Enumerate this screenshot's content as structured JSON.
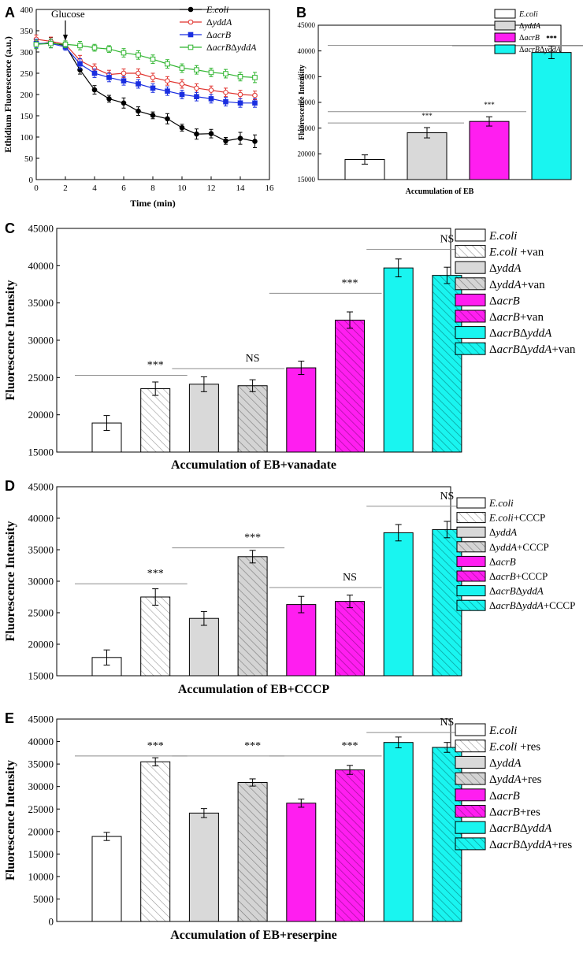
{
  "colors": {
    "ecoli": "#ffffff",
    "yddA": "#d9d9d9",
    "acrB": "#ff1ef0",
    "double": "#19f5f0",
    "line_ecoli": "#000000",
    "line_yddA": "#e0312c",
    "line_acrB": "#1a2ee0",
    "line_double": "#2fb52f",
    "sig_line": "#8c8c8c"
  },
  "chart_data": [
    {
      "id": "A",
      "panel_label": "A",
      "type": "line",
      "xlabel": "Time (min)",
      "ylabel": "Ethidium Fluorescence (a.u.)",
      "xlim": [
        0,
        16
      ],
      "ylim": [
        0,
        400
      ],
      "xticks": [
        0,
        2,
        4,
        6,
        8,
        10,
        12,
        14,
        16
      ],
      "yticks": [
        0,
        50,
        100,
        150,
        200,
        250,
        300,
        350,
        400
      ],
      "annotation": "Glucose",
      "annotation_x": 2,
      "x": [
        0,
        1,
        2,
        3,
        4,
        5,
        6,
        7,
        8,
        9,
        10,
        11,
        12,
        13,
        14,
        15
      ],
      "series": [
        {
          "name": "E.coli",
          "color_key": "line_ecoli",
          "marker": "filled-circle",
          "values": [
            318,
            322,
            315,
            258,
            211,
            190,
            180,
            161,
            151,
            143,
            122,
            107,
            108,
            91,
            97,
            90
          ],
          "errors": [
            10,
            12,
            8,
            10,
            10,
            8,
            12,
            10,
            8,
            12,
            8,
            12,
            10,
            8,
            14,
            15
          ]
        },
        {
          "name": "ΔyddA",
          "color_key": "line_yddA",
          "marker": "open-circle",
          "values": [
            330,
            325,
            318,
            280,
            262,
            247,
            250,
            250,
            240,
            232,
            225,
            215,
            210,
            205,
            200,
            198
          ],
          "errors": [
            10,
            10,
            8,
            12,
            10,
            10,
            10,
            10,
            10,
            10,
            10,
            10,
            10,
            10,
            10,
            10
          ]
        },
        {
          "name": "ΔacrB",
          "color_key": "line_acrB",
          "marker": "filled-square",
          "values": [
            320,
            320,
            312,
            272,
            250,
            240,
            232,
            225,
            215,
            208,
            200,
            195,
            190,
            183,
            180,
            180
          ],
          "errors": [
            10,
            10,
            8,
            12,
            10,
            10,
            10,
            10,
            10,
            10,
            10,
            10,
            10,
            10,
            10,
            10
          ]
        },
        {
          "name": "ΔacrBΔyddA",
          "color_key": "line_double",
          "marker": "open-square",
          "values": [
            318,
            320,
            318,
            315,
            310,
            307,
            298,
            293,
            283,
            272,
            262,
            258,
            252,
            249,
            242,
            240
          ],
          "errors": [
            10,
            10,
            8,
            10,
            8,
            8,
            10,
            10,
            10,
            10,
            10,
            10,
            10,
            10,
            10,
            12
          ]
        }
      ]
    },
    {
      "id": "B",
      "panel_label": "B",
      "type": "bar",
      "xlabel": "Accumulation of EB",
      "ylabel": "Fluorescence Intensity",
      "ylim": [
        15000,
        45000
      ],
      "yticks": [
        15000,
        20000,
        25000,
        30000,
        35000,
        40000,
        45000
      ],
      "bars": [
        {
          "label": "E.coli",
          "value": 18900,
          "error": 900,
          "color_key": "ecoli",
          "hatch": false
        },
        {
          "label": "ΔyddA",
          "value": 24100,
          "error": 1000,
          "color_key": "yddA",
          "hatch": false
        },
        {
          "label": "ΔacrB",
          "value": 26300,
          "error": 900,
          "color_key": "acrB",
          "hatch": false
        },
        {
          "label": "ΔacrBΔyddA",
          "value": 39700,
          "error": 1200,
          "color_key": "double",
          "hatch": false
        }
      ],
      "significance": [
        {
          "text": "***",
          "from": 0,
          "to": 1,
          "level": 26000
        },
        {
          "text": "***",
          "from": 0,
          "to": 2,
          "level": 28200
        },
        {
          "text": "***",
          "from": 2,
          "to": 3,
          "level": 41000
        },
        {
          "text": "***",
          "from": 0,
          "to": 3,
          "level": 41100
        }
      ],
      "legend": [
        "E.coli",
        "ΔyddA",
        "ΔacrB",
        "ΔacrBΔyddA"
      ]
    },
    {
      "id": "C",
      "panel_label": "C",
      "type": "bar",
      "xlabel": "Accumulation of EB+vanadate",
      "ylabel": "Fluorescence Intensity",
      "ylim": [
        15000,
        45000
      ],
      "yticks": [
        15000,
        20000,
        25000,
        30000,
        35000,
        40000,
        45000
      ],
      "bars": [
        {
          "label": "E.coli",
          "value": 18900,
          "error": 1000,
          "color_key": "ecoli",
          "hatch": false
        },
        {
          "label": "E.coli +van",
          "value": 23500,
          "error": 900,
          "color_key": "ecoli",
          "hatch": true
        },
        {
          "label": "ΔyddA",
          "value": 24100,
          "error": 1000,
          "color_key": "yddA",
          "hatch": false
        },
        {
          "label": "ΔyddA+van",
          "value": 23900,
          "error": 800,
          "color_key": "yddA",
          "hatch": true
        },
        {
          "label": "ΔacrB",
          "value": 26300,
          "error": 900,
          "color_key": "acrB",
          "hatch": false
        },
        {
          "label": "ΔacrB+van",
          "value": 32700,
          "error": 1100,
          "color_key": "acrB",
          "hatch": true
        },
        {
          "label": "ΔacrBΔyddA",
          "value": 39700,
          "error": 1200,
          "color_key": "double",
          "hatch": false
        },
        {
          "label": "ΔacrBΔyddA+van",
          "value": 38700,
          "error": 1100,
          "color_key": "double",
          "hatch": true
        }
      ],
      "significance": [
        {
          "text": "***",
          "from": 0,
          "to": 1,
          "level": 25300
        },
        {
          "text": "NS",
          "from": 2,
          "to": 3,
          "level": 26200
        },
        {
          "text": "***",
          "from": 4,
          "to": 5,
          "level": 36300
        },
        {
          "text": "NS",
          "from": 6,
          "to": 7,
          "level": 42200
        }
      ],
      "legend": [
        "E.coli",
        "E.coli +van",
        "ΔyddA",
        "ΔyddA+van",
        "ΔacrB",
        "ΔacrB+van",
        "ΔacrBΔyddA",
        "ΔacrBΔyddA+van"
      ]
    },
    {
      "id": "D",
      "panel_label": "D",
      "type": "bar",
      "xlabel": "Accumulation of EB+CCCP",
      "ylabel": "Fluorescence Intensity",
      "ylim": [
        15000,
        45000
      ],
      "yticks": [
        15000,
        20000,
        25000,
        30000,
        35000,
        40000,
        45000
      ],
      "bars": [
        {
          "label": "E.coli",
          "value": 17900,
          "error": 1200,
          "color_key": "ecoli",
          "hatch": false
        },
        {
          "label": "E.coli+CCCP",
          "value": 27500,
          "error": 1300,
          "color_key": "ecoli",
          "hatch": true
        },
        {
          "label": "ΔyddA",
          "value": 24100,
          "error": 1100,
          "color_key": "yddA",
          "hatch": false
        },
        {
          "label": "ΔyddA+CCCP",
          "value": 33900,
          "error": 1000,
          "color_key": "yddA",
          "hatch": true
        },
        {
          "label": "ΔacrB",
          "value": 26300,
          "error": 1300,
          "color_key": "acrB",
          "hatch": false
        },
        {
          "label": "ΔacrB+CCCP",
          "value": 26800,
          "error": 1000,
          "color_key": "acrB",
          "hatch": true
        },
        {
          "label": "ΔacrBΔyddA",
          "value": 37700,
          "error": 1300,
          "color_key": "double",
          "hatch": false
        },
        {
          "label": "ΔacrBΔyddA+CCCP",
          "value": 38200,
          "error": 1300,
          "color_key": "double",
          "hatch": true
        }
      ],
      "significance": [
        {
          "text": "***",
          "from": 0,
          "to": 1,
          "level": 29600
        },
        {
          "text": "***",
          "from": 2,
          "to": 3,
          "level": 35300
        },
        {
          "text": "NS",
          "from": 4,
          "to": 5,
          "level": 29000
        },
        {
          "text": "NS",
          "from": 6,
          "to": 7,
          "level": 41900
        }
      ],
      "legend": [
        "E.coli",
        "E.coli+CCCP",
        "ΔyddA",
        "ΔyddA+CCCP",
        "ΔacrB",
        "ΔacrB+CCCP",
        "ΔacrBΔyddA",
        "ΔacrBΔyddA+CCCP"
      ]
    },
    {
      "id": "E",
      "panel_label": "E",
      "type": "bar",
      "xlabel": "Accumulation of EB+reserpine",
      "ylabel": "Fluorescence Intensity",
      "ylim": [
        0,
        45000
      ],
      "yticks": [
        0,
        5000,
        10000,
        15000,
        20000,
        25000,
        30000,
        35000,
        40000,
        45000
      ],
      "bars": [
        {
          "label": "E.coli",
          "value": 18900,
          "error": 900,
          "color_key": "ecoli",
          "hatch": false
        },
        {
          "label": "E.coli +res",
          "value": 35500,
          "error": 900,
          "color_key": "ecoli",
          "hatch": true
        },
        {
          "label": "ΔyddA",
          "value": 24100,
          "error": 1000,
          "color_key": "yddA",
          "hatch": false
        },
        {
          "label": "ΔyddA+res",
          "value": 30900,
          "error": 800,
          "color_key": "yddA",
          "hatch": true
        },
        {
          "label": "ΔacrB",
          "value": 26300,
          "error": 900,
          "color_key": "acrB",
          "hatch": false
        },
        {
          "label": "ΔacrB+res",
          "value": 33700,
          "error": 1000,
          "color_key": "acrB",
          "hatch": true
        },
        {
          "label": "ΔacrBΔyddA",
          "value": 39800,
          "error": 1200,
          "color_key": "double",
          "hatch": false
        },
        {
          "label": "ΔacrBΔyddA+res",
          "value": 38700,
          "error": 1100,
          "color_key": "double",
          "hatch": true
        }
      ],
      "significance": [
        {
          "text": "***",
          "from": 0,
          "to": 1,
          "level": 36800
        },
        {
          "text": "***",
          "from": 2,
          "to": 3,
          "level": 36800
        },
        {
          "text": "***",
          "from": 4,
          "to": 5,
          "level": 36800
        },
        {
          "text": "NS",
          "from": 6,
          "to": 7,
          "level": 42000
        }
      ],
      "legend": [
        "E.coli",
        "E.coli +res",
        "ΔyddA",
        "ΔyddA+res",
        "ΔacrB",
        "ΔacrB+res",
        "ΔacrBΔyddA",
        "ΔacrBΔyddA+res"
      ]
    }
  ]
}
